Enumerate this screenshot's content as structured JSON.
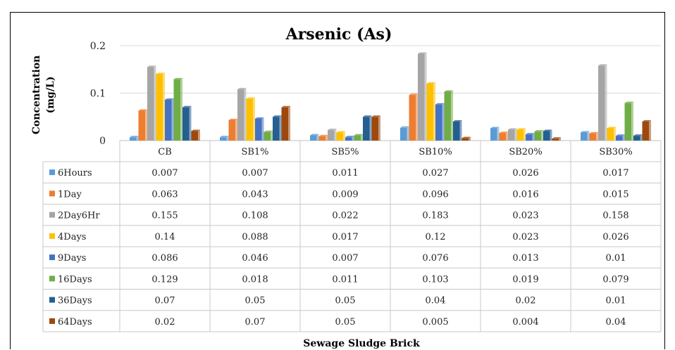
{
  "chart_data": {
    "type": "bar",
    "title": "Arsenic (As)",
    "ylabel_lines": [
      "Concentration",
      "(mg/L)"
    ],
    "xlabel": "Sewage Sludge Brick",
    "yticks": [
      "0",
      "0.1",
      "0.2"
    ],
    "ylim": [
      0,
      0.2
    ],
    "grid": true,
    "legend": "data-table",
    "categories": [
      "CB",
      "SB1%",
      "SB5%",
      "SB10%",
      "SB20%",
      "SB30%"
    ],
    "series": [
      {
        "name": "6Hours",
        "color": "#5B9BD5",
        "values": [
          0.007,
          0.007,
          0.011,
          0.027,
          0.026,
          0.017
        ],
        "labels": [
          "0.007",
          "0.007",
          "0.011",
          "0.027",
          "0.026",
          "0.017"
        ]
      },
      {
        "name": "1Day",
        "color": "#ED7D31",
        "values": [
          0.063,
          0.043,
          0.009,
          0.096,
          0.016,
          0.015
        ],
        "labels": [
          "0.063",
          "0.043",
          "0.009",
          "0.096",
          "0.016",
          "0.015"
        ]
      },
      {
        "name": "2Day6Hr",
        "color": "#A5A5A5",
        "values": [
          0.155,
          0.108,
          0.022,
          0.183,
          0.023,
          0.158
        ],
        "labels": [
          "0.155",
          "0.108",
          "0.022",
          "0.183",
          "0.023",
          "0.158"
        ]
      },
      {
        "name": "4Days",
        "color": "#FFC000",
        "values": [
          0.14,
          0.088,
          0.017,
          0.12,
          0.023,
          0.026
        ],
        "labels": [
          "0.14",
          "0.088",
          "0.017",
          "0.12",
          "0.023",
          "0.026"
        ]
      },
      {
        "name": "9Days",
        "color": "#4472C4",
        "values": [
          0.086,
          0.046,
          0.007,
          0.076,
          0.013,
          0.01
        ],
        "labels": [
          "0.086",
          "0.046",
          "0.007",
          "0.076",
          "0.013",
          "0.01"
        ]
      },
      {
        "name": "16Days",
        "color": "#70AD47",
        "values": [
          0.129,
          0.018,
          0.011,
          0.103,
          0.019,
          0.079
        ],
        "labels": [
          "0.129",
          "0.018",
          "0.011",
          "0.103",
          "0.019",
          "0.079"
        ]
      },
      {
        "name": "36Days",
        "color": "#255E91",
        "values": [
          0.07,
          0.05,
          0.05,
          0.04,
          0.02,
          0.01
        ],
        "labels": [
          "0.07",
          "0.05",
          "0.05",
          "0.04",
          "0.02",
          "0.01"
        ]
      },
      {
        "name": "64Days",
        "color": "#9E480E",
        "values": [
          0.02,
          0.07,
          0.05,
          0.005,
          0.004,
          0.04
        ],
        "labels": [
          "0.02",
          "0.07",
          "0.05",
          "0.005",
          "0.004",
          "0.04"
        ]
      }
    ]
  }
}
